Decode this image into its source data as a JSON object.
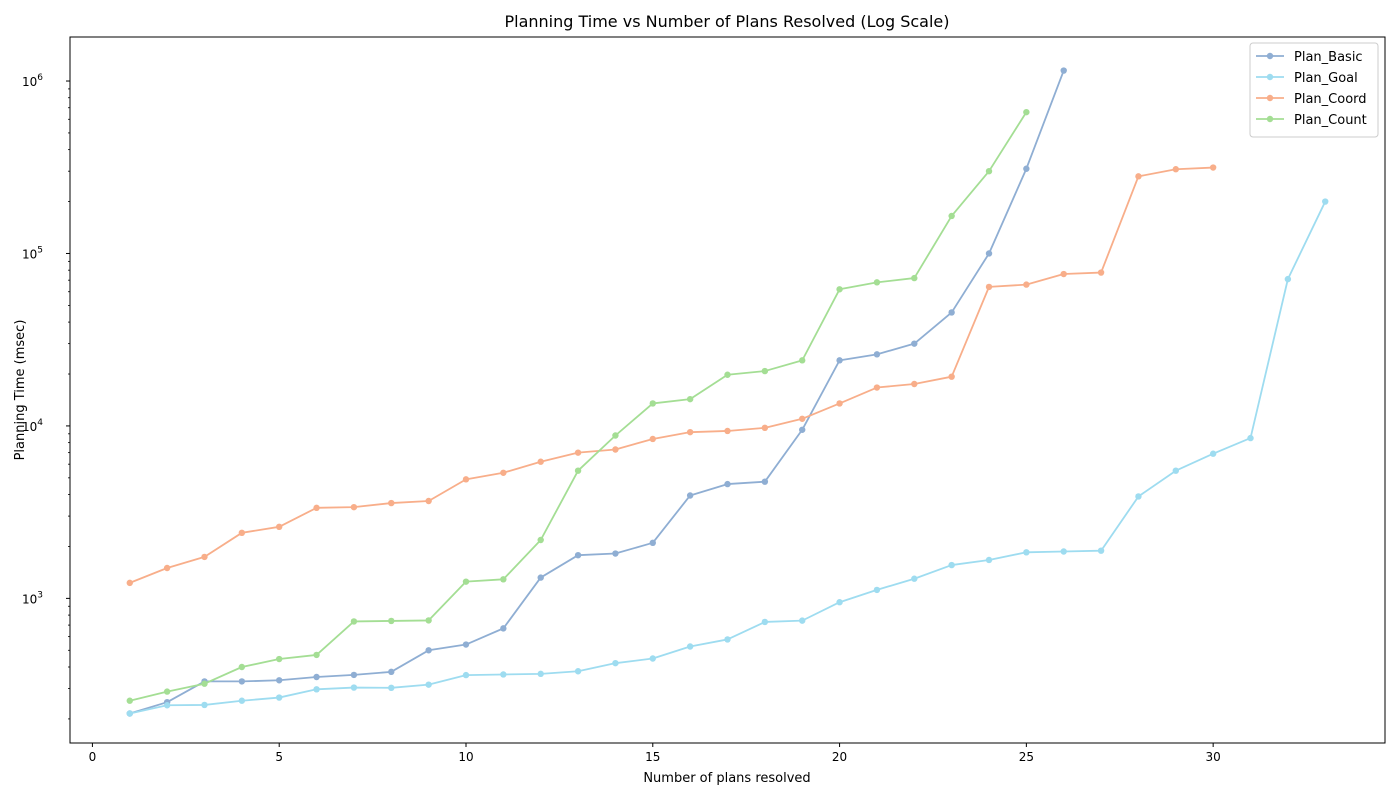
{
  "chart_data": {
    "type": "line",
    "title": "Planning Time vs Number of Plans Resolved (Log Scale)",
    "xlabel": "Number of plans resolved",
    "ylabel": "Planning Time (msec)",
    "xlim": [
      -0.6,
      34.6
    ],
    "ylim": [
      145,
      1800000
    ],
    "yscale": "log",
    "xticks": [
      0,
      5,
      10,
      15,
      20,
      25,
      30
    ],
    "yticks": [
      {
        "value": 1000,
        "exp": "3"
      },
      {
        "value": 10000,
        "exp": "4"
      },
      {
        "value": 100000,
        "exp": "5"
      },
      {
        "value": 1000000,
        "exp": "6"
      }
    ],
    "grid": false,
    "legend_position": "top-right",
    "series": [
      {
        "name": "Plan_Basic",
        "color": "#8faed3",
        "x": [
          1,
          2,
          3,
          4,
          5,
          6,
          7,
          8,
          9,
          10,
          11,
          12,
          13,
          14,
          15,
          16,
          17,
          18,
          19,
          20,
          21,
          22,
          23,
          24,
          25,
          26
        ],
        "y": [
          215,
          250,
          330,
          330,
          335,
          350,
          360,
          375,
          500,
          540,
          670,
          1320,
          1780,
          1820,
          2100,
          3950,
          4600,
          4750,
          9500,
          24000,
          26000,
          30000,
          45500,
          100000,
          310000,
          1150000
        ]
      },
      {
        "name": "Plan_Goal",
        "color": "#9edcf0",
        "x": [
          1,
          2,
          3,
          4,
          5,
          6,
          7,
          8,
          9,
          10,
          11,
          12,
          13,
          14,
          15,
          16,
          17,
          18,
          19,
          20,
          21,
          22,
          23,
          24,
          25,
          26,
          27,
          28,
          29,
          30,
          31,
          32,
          33
        ],
        "y": [
          215,
          240,
          241,
          255,
          266,
          297,
          304,
          303,
          316,
          359,
          362,
          365,
          378,
          421,
          448,
          526,
          578,
          730,
          743,
          950,
          1120,
          1300,
          1560,
          1670,
          1850,
          1870,
          1890,
          3900,
          5500,
          6900,
          8500,
          71000,
          200000
        ]
      },
      {
        "name": "Plan_Coord",
        "color": "#f8ae8a",
        "x": [
          1,
          2,
          3,
          4,
          5,
          6,
          7,
          8,
          9,
          10,
          11,
          12,
          13,
          14,
          15,
          16,
          17,
          18,
          19,
          20,
          21,
          22,
          23,
          24,
          25,
          26,
          27,
          28,
          29,
          30
        ],
        "y": [
          1230,
          1500,
          1740,
          2400,
          2600,
          3350,
          3380,
          3570,
          3670,
          4900,
          5350,
          6200,
          7000,
          7300,
          8400,
          9200,
          9350,
          9750,
          11000,
          13500,
          16700,
          17500,
          19300,
          64000,
          66000,
          76000,
          77500,
          280000,
          308000,
          315000
        ]
      },
      {
        "name": "Plan_Count",
        "color": "#a4de94",
        "x": [
          1,
          2,
          3,
          4,
          5,
          6,
          7,
          8,
          9,
          10,
          11,
          12,
          13,
          14,
          15,
          16,
          17,
          18,
          19,
          20,
          21,
          22,
          23,
          24,
          25
        ],
        "y": [
          255,
          288,
          320,
          400,
          445,
          470,
          735,
          740,
          745,
          1250,
          1290,
          2180,
          5500,
          8800,
          13500,
          14300,
          19800,
          20800,
          24000,
          62000,
          68000,
          72000,
          165000,
          300000,
          660000
        ]
      }
    ]
  }
}
